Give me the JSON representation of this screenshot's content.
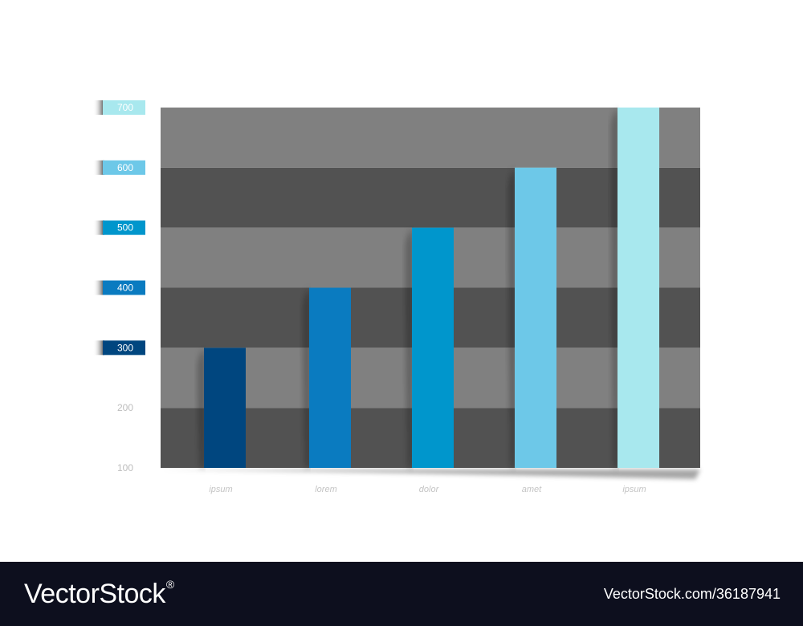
{
  "chart_data": {
    "type": "bar",
    "categories": [
      "ipsum",
      "lorem",
      "dolor",
      "amet",
      "ipsum"
    ],
    "values": [
      300,
      400,
      500,
      600,
      700
    ],
    "bar_colors": [
      "#00467f",
      "#0a7bc0",
      "#0096cc",
      "#6dc8e8",
      "#a8e8ee"
    ],
    "yticks": [
      100,
      200,
      300,
      400,
      500,
      600,
      700
    ],
    "ytick_tab_colors": {
      "300": "#00467f",
      "400": "#0a7bc0",
      "500": "#0096cc",
      "600": "#6dc8e8",
      "700": "#a8e8ee"
    },
    "band_colors": [
      "#525252",
      "#808080"
    ],
    "ylim": [
      100,
      700
    ],
    "title": "",
    "xlabel": "",
    "ylabel": "",
    "grid": false,
    "legend": "none"
  },
  "footer": {
    "brand": "VectorStock",
    "brand_mark": "®",
    "image_id": "VectorStock.com/36187941",
    "background": "#0d0f1e"
  }
}
